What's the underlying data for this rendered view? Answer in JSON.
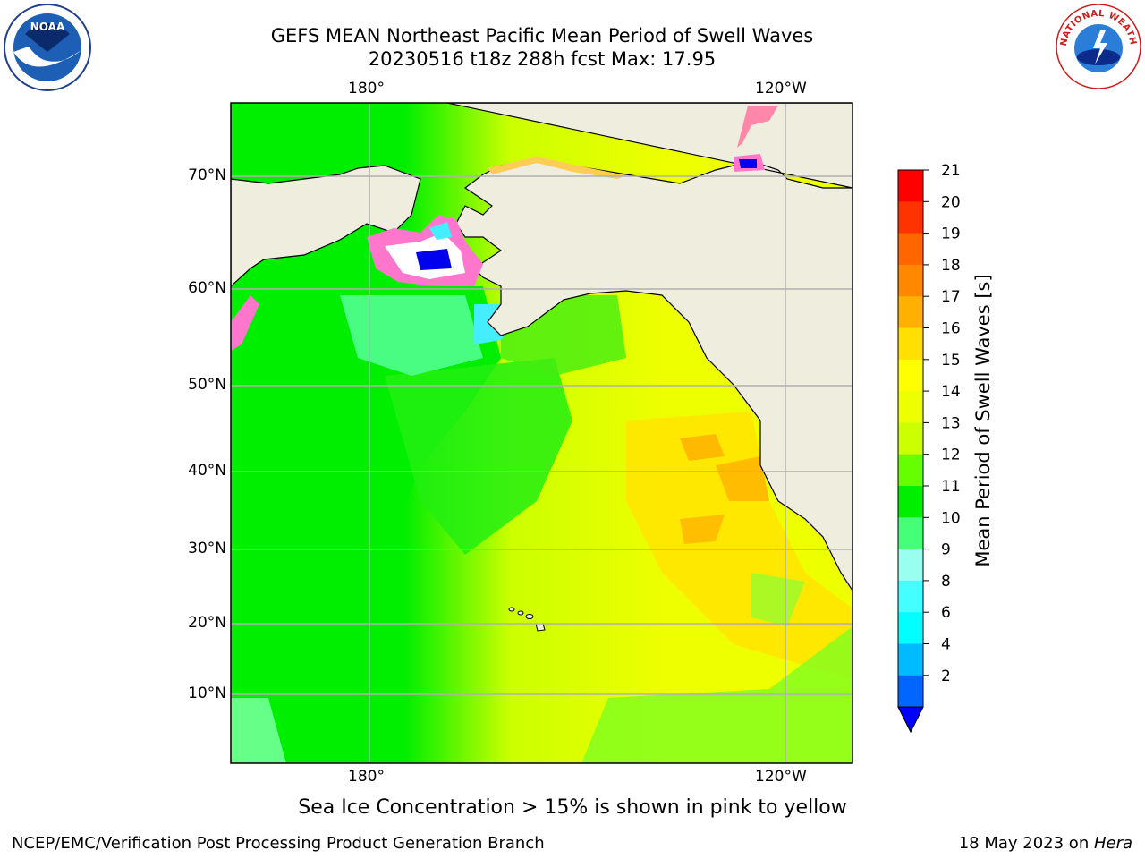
{
  "title": {
    "line1": "GEFS MEAN Northeast Pacific Mean Period of Swell Waves",
    "line2": "20230516 t18z 288h fcst   Max: 17.95"
  },
  "map": {
    "lon_ticks_top": [
      "180°",
      "120°W"
    ],
    "lon_ticks_bottom": [
      "180°",
      "120°W"
    ],
    "lat_ticks": [
      "70°N",
      "60°N",
      "50°N",
      "40°N",
      "30°N",
      "20°N",
      "10°N"
    ],
    "colors": {
      "land": "#efedde",
      "green": "#00ee00",
      "light_green": "#66ff33",
      "yellow_green": "#ccff00",
      "yellow": "#eeff00",
      "gold": "#ffe600",
      "orange": "#ffb000",
      "aqua": "#44ff88",
      "cyan": "#44eeff",
      "blue": "#0000ee",
      "pink": "#ff66cc",
      "grid": "#b0b0b0"
    }
  },
  "colorbar": {
    "label": "Mean Period of Swell Waves [s]",
    "ticks": [
      "21",
      "20",
      "19",
      "18",
      "17",
      "16",
      "15",
      "14",
      "13",
      "12",
      "11",
      "10",
      "9",
      "8",
      "6",
      "4",
      "2"
    ],
    "colors": [
      "#ff0000",
      "#ff3300",
      "#ff6600",
      "#ff8800",
      "#ffb000",
      "#ffe000",
      "#ffff00",
      "#eeff00",
      "#ccff00",
      "#66ff00",
      "#00ee00",
      "#44ff77",
      "#99ffee",
      "#44ffff",
      "#00ffff",
      "#00bbff",
      "#0066ff"
    ],
    "extend_color": "#0000ff"
  },
  "caption": "Sea Ice Concentration > 15% is shown in pink to yellow",
  "footer": {
    "credit": "NCEP/EMC/Verification Post Processing Product Generation Branch",
    "date": "18 May 2023 on ",
    "machine": "Hera"
  },
  "logos": {
    "noaa_text": "NOAA",
    "nws_text": "NATIONAL WEATHER SERVICE"
  }
}
